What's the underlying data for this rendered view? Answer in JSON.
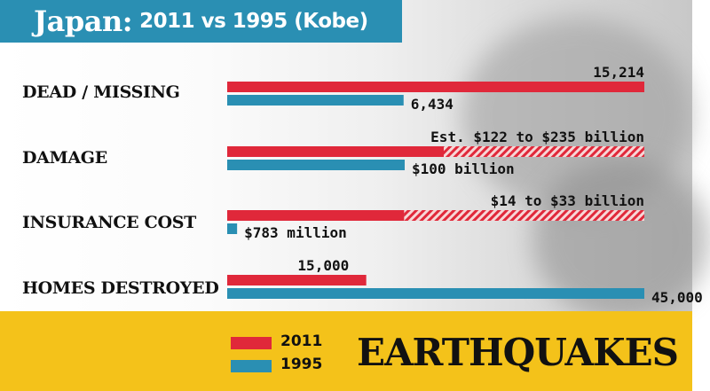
{
  "header": {
    "title_main": "Japan:",
    "title_sub": "2011 vs 1995 (Kobe)"
  },
  "colors": {
    "series_2011": "#e0283a",
    "series_1995": "#2a8fb3",
    "header_bg": "#2a8fb3",
    "footer_bg": "#f4c21a"
  },
  "chart_data": {
    "type": "bar",
    "orientation": "horizontal",
    "categories": [
      "DEAD / MISSING",
      "DAMAGE",
      "INSURANCE COST",
      "HOMES DESTROYED"
    ],
    "series": [
      {
        "name": "2011",
        "color": "#e0283a",
        "values": [
          15214,
          235,
          33,
          15000
        ],
        "value_low": [
          null,
          122,
          14,
          null
        ],
        "labels": [
          "15,214",
          "Est. $122 to $235 billion",
          "$14 to $33 billion",
          "15,000"
        ]
      },
      {
        "name": "1995",
        "color": "#2a8fb3",
        "values": [
          6434,
          100,
          0.783,
          45000
        ],
        "labels": [
          "6,434",
          "$100 billion",
          "$783 million",
          "45,000"
        ]
      }
    ],
    "scale_max": [
      15214,
      235,
      33,
      45000
    ],
    "range_style": "hatched portion spans low to high estimate",
    "legend": {
      "placement": "bottom"
    }
  },
  "footer": {
    "title": "EARTHQUAKES",
    "legend_2011": "2011",
    "legend_1995": "1995"
  }
}
